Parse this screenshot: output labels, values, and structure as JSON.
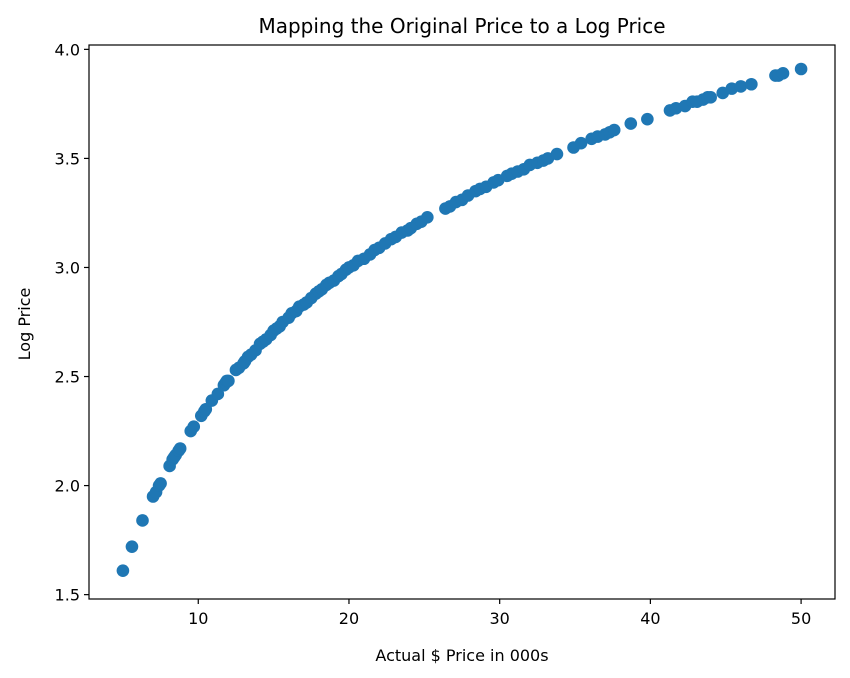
{
  "chart_data": {
    "type": "scatter",
    "title": "Mapping the Original Price to a Log Price",
    "xlabel": "Actual $ Price in 000s",
    "ylabel": "Log Price",
    "xlim": [
      2.75,
      52.25
    ],
    "ylim": [
      1.48,
      4.02
    ],
    "xticks": [
      10,
      20,
      30,
      40,
      50
    ],
    "yticks": [
      1.5,
      2.0,
      2.5,
      3.0,
      3.5,
      4.0
    ],
    "xtick_labels": [
      "10",
      "20",
      "30",
      "40",
      "50"
    ],
    "ytick_labels": [
      "1.5",
      "2.0",
      "2.5",
      "3.0",
      "3.5",
      "4.0"
    ],
    "grid": false,
    "marker_color": "#1f77b4",
    "series": [
      {
        "x": [
          5.0,
          5.6,
          6.3,
          7.0,
          7.2,
          7.4,
          7.5,
          8.1,
          8.3,
          8.4,
          8.5,
          8.7,
          8.8,
          9.5,
          9.7,
          10.2,
          10.4,
          10.5,
          10.9,
          11.3,
          11.7,
          11.8,
          11.9,
          12.0,
          12.5,
          12.7,
          13.0,
          13.1,
          13.3,
          13.5,
          13.8,
          14.1,
          14.3,
          14.5,
          14.8,
          15.0,
          15.2,
          15.4,
          15.6,
          16.0,
          16.2,
          16.5,
          16.7,
          17.0,
          17.2,
          17.5,
          17.8,
          18.0,
          18.2,
          18.5,
          18.7,
          19.0,
          19.3,
          19.5,
          19.8,
          20.0,
          20.3,
          20.6,
          21.0,
          21.4,
          21.7,
          22.0,
          22.4,
          22.8,
          23.1,
          23.5,
          23.9,
          24.1,
          24.5,
          24.8,
          25.2,
          26.4,
          26.7,
          27.1,
          27.5,
          27.9,
          28.4,
          28.7,
          29.1,
          29.6,
          29.9,
          30.5,
          30.8,
          31.2,
          31.6,
          32.0,
          32.5,
          32.9,
          33.2,
          33.8,
          34.9,
          35.4,
          36.1,
          36.5,
          37.0,
          37.3,
          37.6,
          38.7,
          39.8,
          41.3,
          41.7,
          42.3,
          42.8,
          43.1,
          43.5,
          43.8,
          44.0,
          44.8,
          45.4,
          46.0,
          46.7,
          48.3,
          48.5,
          48.8,
          50.0
        ],
        "y": [
          1.61,
          1.72,
          1.84,
          1.95,
          1.97,
          2.0,
          2.01,
          2.09,
          2.12,
          2.13,
          2.14,
          2.16,
          2.17,
          2.25,
          2.27,
          2.32,
          2.34,
          2.35,
          2.39,
          2.42,
          2.46,
          2.47,
          2.48,
          2.48,
          2.53,
          2.54,
          2.56,
          2.57,
          2.59,
          2.6,
          2.62,
          2.65,
          2.66,
          2.67,
          2.69,
          2.71,
          2.72,
          2.73,
          2.75,
          2.77,
          2.79,
          2.8,
          2.82,
          2.83,
          2.84,
          2.86,
          2.88,
          2.89,
          2.9,
          2.92,
          2.93,
          2.94,
          2.96,
          2.97,
          2.99,
          3.0,
          3.01,
          3.03,
          3.04,
          3.06,
          3.08,
          3.09,
          3.11,
          3.13,
          3.14,
          3.16,
          3.17,
          3.18,
          3.2,
          3.21,
          3.23,
          3.27,
          3.28,
          3.3,
          3.31,
          3.33,
          3.35,
          3.36,
          3.37,
          3.39,
          3.4,
          3.42,
          3.43,
          3.44,
          3.45,
          3.47,
          3.48,
          3.49,
          3.5,
          3.52,
          3.55,
          3.57,
          3.59,
          3.6,
          3.61,
          3.62,
          3.63,
          3.66,
          3.68,
          3.72,
          3.73,
          3.74,
          3.76,
          3.76,
          3.77,
          3.78,
          3.78,
          3.8,
          3.82,
          3.83,
          3.84,
          3.88,
          3.88,
          3.89,
          3.91
        ]
      }
    ]
  }
}
